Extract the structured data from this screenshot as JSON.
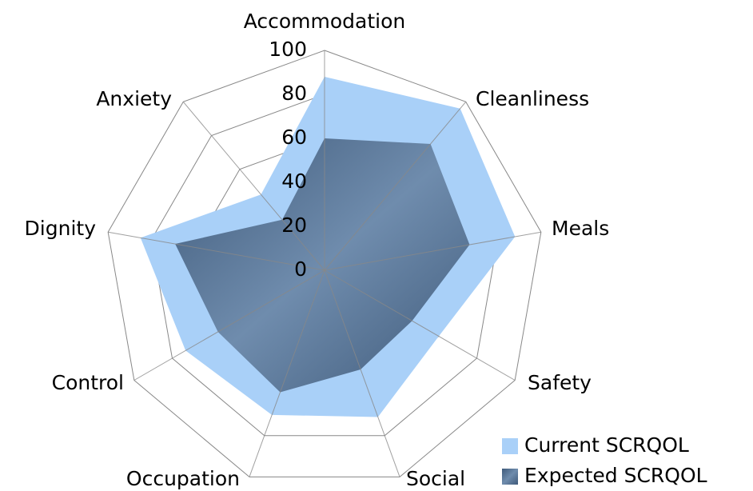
{
  "chart_data": {
    "type": "radar",
    "categories": [
      "Accommodation",
      "Cleanliness",
      "Meals",
      "Safety",
      "Social",
      "Occupation",
      "Control",
      "Dignity",
      "Anxiety"
    ],
    "series": [
      {
        "name": "Current SCRQOL",
        "color": "#a9d0f8",
        "values": [
          88,
          96,
          88,
          60,
          71,
          70,
          73,
          85,
          45
        ]
      },
      {
        "name": "Expected SCRQOL",
        "color": "#5c7899",
        "values": [
          60,
          75,
          67,
          46,
          48,
          59,
          56,
          69,
          30
        ]
      }
    ],
    "ylim": [
      0,
      100
    ],
    "yticks": [
      0,
      20,
      40,
      60,
      80,
      100
    ],
    "grid": true,
    "legend": "bottom-right"
  }
}
